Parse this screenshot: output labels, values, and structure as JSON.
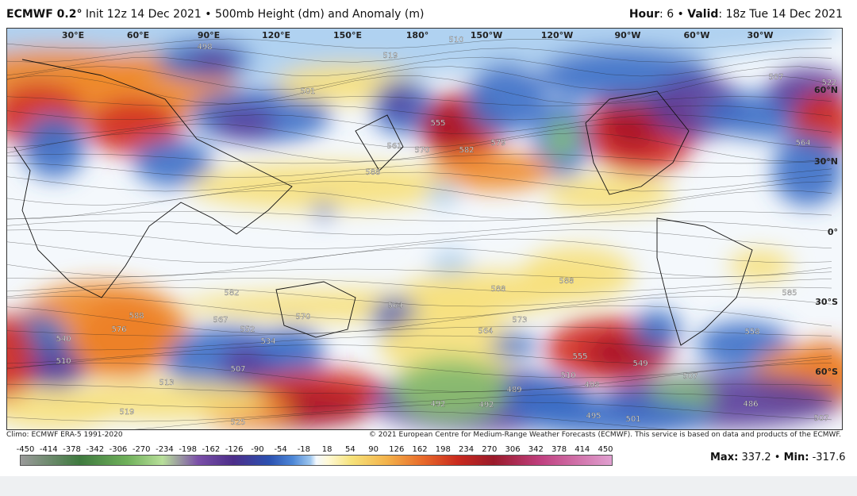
{
  "header": {
    "model": "ECMWF 0.2°",
    "description": "Init 12z 14 Dec 2021 • 500mb Height (dm) and Anomaly (m)",
    "hour_label": "Hour",
    "hour": ": 6 •",
    "valid_label": "Valid",
    "valid": ": 18z Tue 14 Dec 2021"
  },
  "map": {
    "lon_labels": [
      "30°E",
      "60°E",
      "90°E",
      "120°E",
      "150°E",
      "180°",
      "150°W",
      "120°W",
      "90°W",
      "60°W",
      "30°W"
    ],
    "lat_labels": [
      "60°N",
      "30°N",
      "0°",
      "30°S",
      "60°S"
    ],
    "contour_labels": [
      "498",
      "501",
      "555",
      "519",
      "510",
      "588",
      "561",
      "570",
      "582",
      "579",
      "507",
      "522",
      "564",
      "582",
      "588",
      "576",
      "567",
      "552",
      "534",
      "540",
      "510",
      "507",
      "513",
      "519",
      "525",
      "570",
      "564",
      "564",
      "573",
      "588",
      "588",
      "555",
      "549",
      "510",
      "498",
      "489",
      "492",
      "492",
      "495",
      "501",
      "507",
      "486",
      "558",
      "585",
      "507"
    ]
  },
  "footer": {
    "climo": "Climo: ECMWF ERA-5 1991-2020",
    "copyright": "© 2021 European Centre for Medium-Range Weather Forecasts (ECMWF). This service is based on data and products of the ECMWF."
  },
  "colorbar": {
    "ticks": [
      -450,
      -414,
      -378,
      -342,
      -306,
      -270,
      -234,
      -198,
      -162,
      -126,
      -90,
      -54,
      -18,
      18,
      54,
      90,
      126,
      162,
      198,
      234,
      270,
      306,
      342,
      378,
      414,
      450
    ]
  },
  "stats": {
    "max_label": "Max:",
    "max": "337.2",
    "separator": "•",
    "min_label": "Min:",
    "min": "-317.6"
  }
}
